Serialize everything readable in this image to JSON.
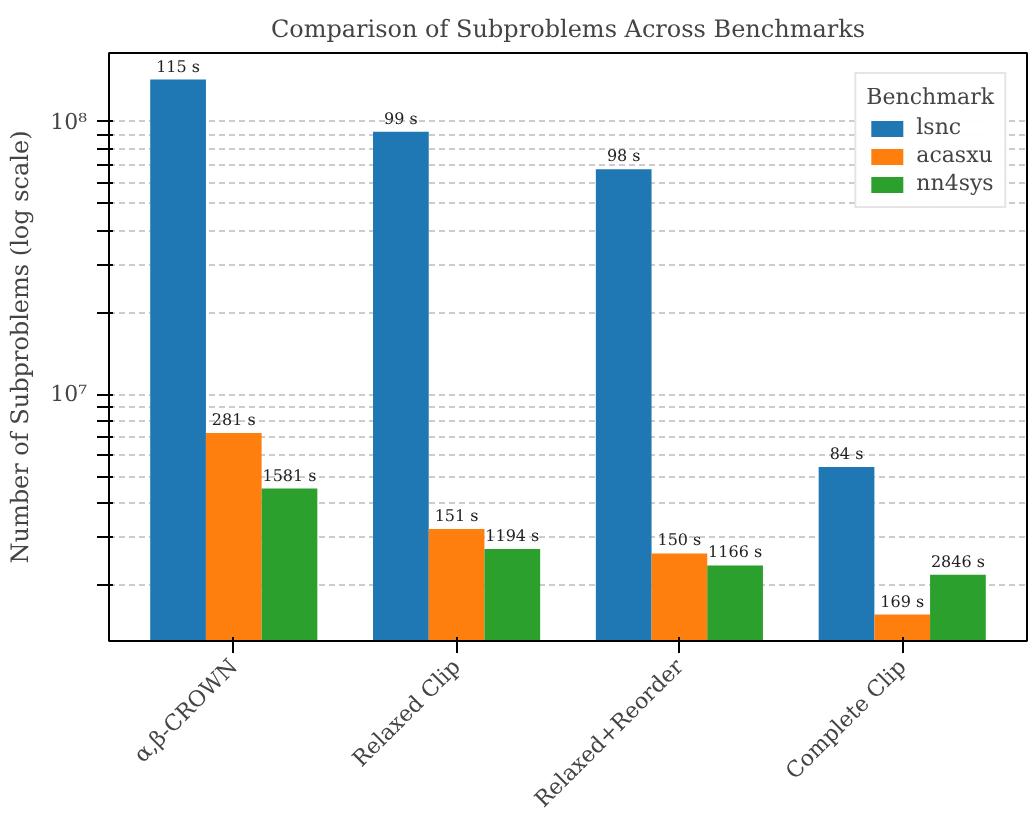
{
  "chart_data": {
    "type": "bar",
    "title": "Comparison of Subproblems Across Benchmarks",
    "ylabel": "Number of Subproblems (log scale)",
    "legend_title": "Benchmark",
    "categories": [
      "α,β-CROWN",
      "Relaxed Clip",
      "Relaxed+Reorder",
      "Complete Clip"
    ],
    "series": [
      {
        "name": "lsnc",
        "color": "#1f77b4",
        "values": [
          143000000,
          92000000,
          67000000,
          5400000
        ]
      },
      {
        "name": "acasxu",
        "color": "#ff7f0e",
        "values": [
          7200000,
          3200000,
          2600000,
          1550000
        ]
      },
      {
        "name": "nn4sys",
        "color": "#2ca02c",
        "values": [
          4500000,
          2700000,
          2350000,
          2170000
        ]
      }
    ],
    "annotations": [
      "115 s",
      "99 s",
      "98 s",
      "84 s",
      "281 s",
      "151 s",
      "150 s",
      "169 s",
      "1581 s",
      "1194 s",
      "1166 s",
      "2846 s"
    ],
    "log": "y",
    "ylim": [
      1240000,
      179000000
    ],
    "yticks": [
      {
        "value": 2000000,
        "label": null
      },
      {
        "value": 3000000,
        "label": null
      },
      {
        "value": 4000000,
        "label": null
      },
      {
        "value": 5000000,
        "label": null
      },
      {
        "value": 6000000,
        "label": null
      },
      {
        "value": 7000000,
        "label": null
      },
      {
        "value": 8000000,
        "label": null
      },
      {
        "value": 9000000,
        "label": null
      },
      {
        "value": 10000000,
        "label": "10⁷"
      },
      {
        "value": 20000000,
        "label": null
      },
      {
        "value": 30000000,
        "label": null
      },
      {
        "value": 40000000,
        "label": null
      },
      {
        "value": 50000000,
        "label": null
      },
      {
        "value": 60000000,
        "label": null
      },
      {
        "value": 70000000,
        "label": null
      },
      {
        "value": 80000000,
        "label": null
      },
      {
        "value": 90000000,
        "label": null
      },
      {
        "value": 100000000,
        "label": "10⁸"
      }
    ],
    "grid": "y",
    "legend": "top right"
  }
}
